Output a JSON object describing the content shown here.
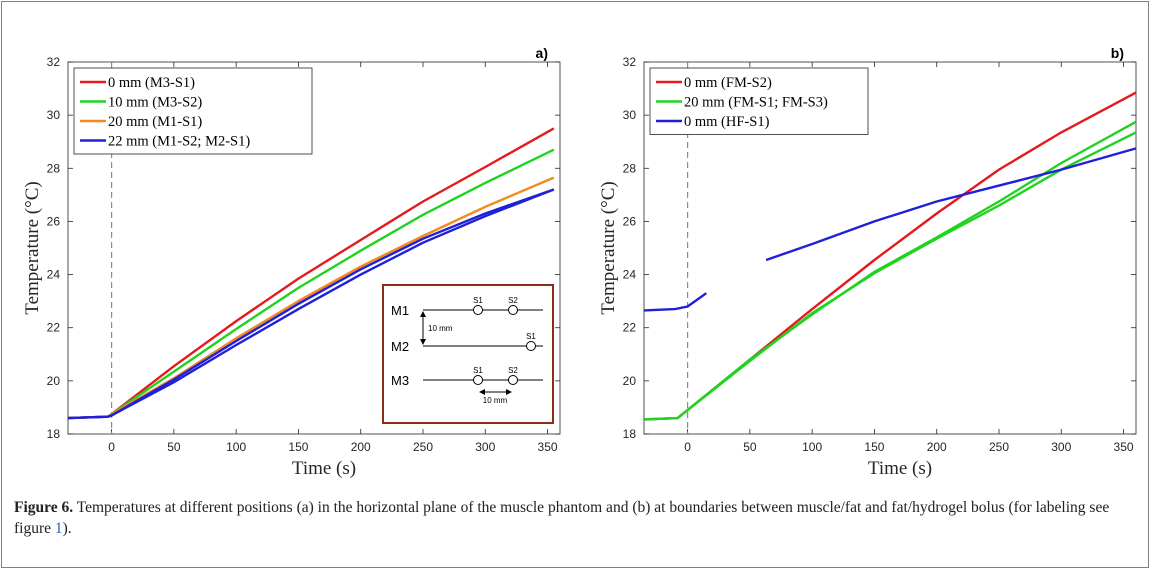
{
  "chart_data": [
    {
      "panel": "a)",
      "type": "line",
      "xlabel": "Time (s)",
      "ylabel": "Temperature (°C)",
      "xlim": [
        -35,
        360
      ],
      "ylim": [
        18,
        32
      ],
      "xticks": [
        0,
        50,
        100,
        150,
        200,
        250,
        300,
        350
      ],
      "yticks": [
        18,
        20,
        22,
        24,
        26,
        28,
        30,
        32
      ],
      "vline_x": 0,
      "grid": false,
      "legend_position": "top-left",
      "series": [
        {
          "name": "0 mm   (M3-S1)",
          "color": "#e41a1c",
          "x": [
            -35,
            -3,
            0,
            50,
            100,
            150,
            200,
            250,
            300,
            355
          ],
          "y": [
            18.6,
            18.65,
            18.75,
            20.55,
            22.25,
            23.85,
            25.3,
            26.75,
            28.05,
            29.5
          ]
        },
        {
          "name": "10 mm  (M3-S2)",
          "color": "#1fd31f",
          "x": [
            -35,
            -3,
            0,
            50,
            100,
            150,
            200,
            250,
            300,
            355
          ],
          "y": [
            18.6,
            18.65,
            18.75,
            20.35,
            21.95,
            23.5,
            24.9,
            26.25,
            27.45,
            28.7
          ]
        },
        {
          "name": "20 mm  (M1-S1)",
          "color": "#f28a1c",
          "x": [
            -35,
            -3,
            0,
            50,
            100,
            150,
            200,
            250,
            300,
            355
          ],
          "y": [
            18.6,
            18.65,
            18.75,
            20.1,
            21.6,
            23.0,
            24.3,
            25.45,
            26.55,
            27.65
          ]
        },
        {
          "name": "22 mm  (M1-S2; M2-S1)",
          "color": "#2020d8",
          "x": [
            -35,
            -3,
            0,
            50,
            100,
            150,
            200,
            250,
            300,
            355
          ],
          "y": [
            18.6,
            18.65,
            18.7,
            19.95,
            21.35,
            22.7,
            24.0,
            25.2,
            26.2,
            27.2
          ]
        },
        {
          "name": "",
          "color": "#2020d8",
          "x": [
            -35,
            -3,
            0,
            50,
            100,
            150,
            200,
            250,
            300,
            355
          ],
          "y": [
            18.6,
            18.65,
            18.7,
            20.05,
            21.5,
            22.9,
            24.2,
            25.35,
            26.3,
            27.2
          ]
        }
      ],
      "inset": {
        "rows": [
          "M1",
          "M2",
          "M3"
        ],
        "sensor_labels": [
          "S1",
          "S2",
          "S1",
          "S1",
          "S2"
        ],
        "distance_labels": [
          "10 mm",
          "10 mm"
        ]
      }
    },
    {
      "panel": "b)",
      "type": "line",
      "xlabel": "Time (s)",
      "ylabel": "Temperature (°C)",
      "xlim": [
        -35,
        360
      ],
      "ylim": [
        18,
        32
      ],
      "xticks": [
        0,
        50,
        100,
        150,
        200,
        250,
        300,
        350
      ],
      "yticks": [
        18,
        20,
        22,
        24,
        26,
        28,
        30,
        32
      ],
      "vline_x": 0,
      "grid": false,
      "legend_position": "top-left",
      "series": [
        {
          "name": "0 mm    (FM-S2)",
          "color": "#e41a1c",
          "x": [
            -35,
            -8,
            0,
            50,
            100,
            150,
            200,
            250,
            300,
            360
          ],
          "y": [
            18.55,
            18.6,
            18.9,
            20.8,
            22.7,
            24.55,
            26.3,
            27.95,
            29.35,
            30.85
          ]
        },
        {
          "name": "20 mm (FM-S1; FM-S3)",
          "color": "#1fd31f",
          "x": [
            -35,
            -8,
            0,
            50,
            100,
            150,
            200,
            250,
            300,
            360
          ],
          "y": [
            18.55,
            18.6,
            18.9,
            20.8,
            22.5,
            24.1,
            25.4,
            26.75,
            28.2,
            29.75
          ]
        },
        {
          "name": "",
          "color": "#1fd31f",
          "x": [
            -35,
            -8,
            0,
            50,
            100,
            150,
            200,
            250,
            300,
            360
          ],
          "y": [
            18.55,
            18.6,
            18.9,
            20.75,
            22.55,
            24.05,
            25.35,
            26.6,
            27.95,
            29.35
          ]
        },
        {
          "name": "0 mm    (HF-S1)",
          "color": "#2020d8",
          "x": [
            -35,
            -10,
            0,
            15
          ],
          "y": [
            22.65,
            22.7,
            22.8,
            23.3
          ]
        },
        {
          "name": "",
          "color": "#2020d8",
          "x": [
            63,
            100,
            150,
            200,
            250,
            300,
            360
          ],
          "y": [
            24.55,
            25.15,
            26.0,
            26.75,
            27.35,
            27.95,
            28.75
          ]
        }
      ]
    }
  ],
  "figure": {
    "caption_label": "Figure 6.",
    "caption_text_1": " Temperatures at different positions (a) in the horizontal plane of the muscle phantom and (b) at boundaries between muscle/fat and fat/hydrogel bolus (for labeling see figure ",
    "caption_link": "1",
    "caption_text_2": ")."
  }
}
